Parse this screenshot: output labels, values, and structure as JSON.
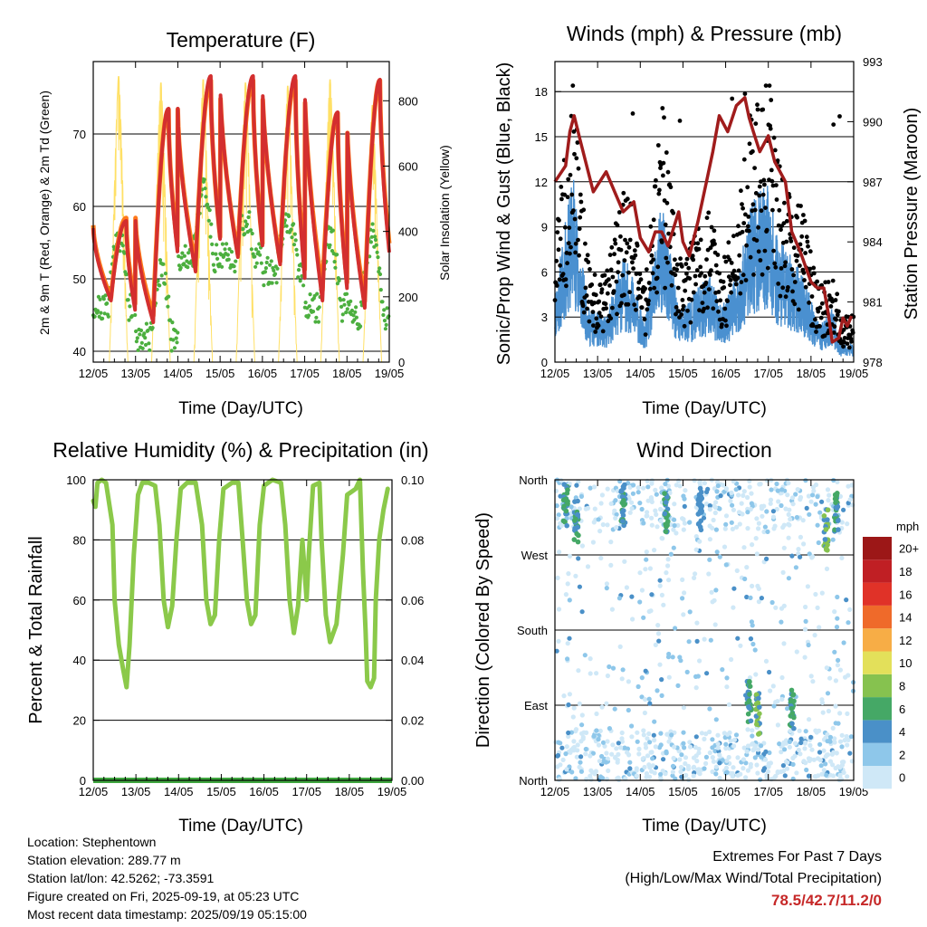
{
  "chart_data": [
    {
      "id": "temperature",
      "type": "line",
      "title": "Temperature (F)",
      "ylabel": "2m & 9m T (Red, Orange) & 2m Td (Green)",
      "y2label": "Solar Insolation (Yellow)",
      "xlabel": "Time (Day/UTC)",
      "xticks": [
        "12/05",
        "13/05",
        "14/05",
        "15/05",
        "16/05",
        "17/05",
        "18/05",
        "19/05"
      ],
      "xlim_days": [
        0,
        7
      ],
      "ylim": [
        38.5,
        80
      ],
      "yticks": [
        40,
        50,
        60,
        70
      ],
      "y2lim": [
        0,
        920
      ],
      "y2ticks": [
        0,
        200,
        400,
        600,
        800
      ],
      "grid_y": [
        40,
        50,
        60,
        70
      ],
      "series": [
        {
          "name": "2m T",
          "color": "#d32f2f",
          "daily_min": [
            47,
            44,
            51,
            53,
            52,
            47,
            46,
            51
          ],
          "daily_max": [
            58,
            73.5,
            78,
            78,
            78,
            73,
            77.5
          ]
        },
        {
          "name": "9m T",
          "color": "#ff7a1a",
          "daily_min": [
            47,
            44.5,
            51.5,
            53,
            52,
            48,
            46.5,
            52
          ],
          "daily_max": [
            58,
            73,
            77,
            77,
            77,
            72.5,
            77
          ]
        },
        {
          "name": "2m Td",
          "color": "#4caf3f",
          "daily_min": [
            46,
            42,
            53,
            53,
            51,
            46,
            45,
            50
          ],
          "daily_max": [
            56,
            51,
            62,
            58,
            58,
            56,
            56,
            51
          ]
        },
        {
          "name": "Solar Insolation",
          "color": "#ffe066",
          "daily_max": [
            890,
            870,
            880,
            870,
            860,
            880,
            800
          ]
        }
      ]
    },
    {
      "id": "winds",
      "type": "scatter",
      "title": "Winds (mph) & Pressure (mb)",
      "ylabel": "Sonic/Prop Wind & Gust (Blue, Black)",
      "y2label": "Station Pressure (Maroon)",
      "xlabel": "Time (Day/UTC)",
      "xticks": [
        "12/05",
        "13/05",
        "14/05",
        "15/05",
        "16/05",
        "17/05",
        "18/05",
        "19/05"
      ],
      "xlim_days": [
        0,
        7
      ],
      "ylim": [
        0,
        20
      ],
      "yticks": [
        0,
        3,
        6,
        9,
        12,
        15,
        18
      ],
      "y2lim": [
        978,
        993
      ],
      "y2ticks": [
        978,
        981,
        984,
        987,
        990,
        993
      ],
      "series": [
        {
          "name": "Wind",
          "color": "#4a90d0"
        },
        {
          "name": "Gust",
          "color": "#000000",
          "max": 18.4
        },
        {
          "name": "Pressure",
          "color": "#a01c1c",
          "points": [
            [
              0,
              987
            ],
            [
              0.25,
              987.8
            ],
            [
              0.35,
              989.5
            ],
            [
              0.45,
              990.3
            ],
            [
              0.6,
              989
            ],
            [
              0.9,
              986.5
            ],
            [
              1.2,
              987.5
            ],
            [
              1.4,
              986.5
            ],
            [
              1.6,
              985.5
            ],
            [
              1.85,
              986
            ],
            [
              2.0,
              984.2
            ],
            [
              2.2,
              983.5
            ],
            [
              2.35,
              984.5
            ],
            [
              2.5,
              984.5
            ],
            [
              2.65,
              983.8
            ],
            [
              2.9,
              985.5
            ],
            [
              3.0,
              984
            ],
            [
              3.15,
              983.3
            ],
            [
              3.35,
              985
            ],
            [
              3.55,
              987
            ],
            [
              3.7,
              988.5
            ],
            [
              3.85,
              990.3
            ],
            [
              4.05,
              989.5
            ],
            [
              4.25,
              990.8
            ],
            [
              4.45,
              991.2
            ],
            [
              4.55,
              990.2
            ],
            [
              4.65,
              989.5
            ],
            [
              4.8,
              988.5
            ],
            [
              5.0,
              989.3
            ],
            [
              5.15,
              988
            ],
            [
              5.4,
              987
            ],
            [
              5.55,
              984.5
            ],
            [
              5.75,
              983.5
            ],
            [
              6.0,
              982
            ],
            [
              6.15,
              981.7
            ],
            [
              6.3,
              981.7
            ],
            [
              6.4,
              980.5
            ],
            [
              6.5,
              979
            ],
            [
              6.65,
              979.2
            ],
            [
              6.75,
              980.2
            ],
            [
              6.85,
              979.8
            ],
            [
              6.95,
              980.3
            ]
          ]
        }
      ]
    },
    {
      "id": "humidity",
      "type": "line",
      "title": "Relative Humidity (%) & Precipitation (in)",
      "ylabel": "Percent & Total Rainfall",
      "xlabel": "Time (Day/UTC)",
      "xticks": [
        "12/05",
        "13/05",
        "14/05",
        "15/05",
        "16/05",
        "17/05",
        "18/05",
        "19/05"
      ],
      "xlim_days": [
        0,
        7
      ],
      "ylim": [
        0,
        100
      ],
      "yticks": [
        0,
        20,
        40,
        60,
        80,
        100
      ],
      "y2lim": [
        0,
        0.1
      ],
      "y2ticks": [
        "0.00",
        "0.02",
        "0.04",
        "0.06",
        "0.08",
        "0.10"
      ],
      "series": [
        {
          "name": "Relative Humidity",
          "color": "#8bc94a",
          "points": [
            [
              0,
              93
            ],
            [
              0.05,
              91
            ],
            [
              0.1,
              99
            ],
            [
              0.2,
              100
            ],
            [
              0.3,
              99
            ],
            [
              0.45,
              85
            ],
            [
              0.5,
              60
            ],
            [
              0.6,
              45
            ],
            [
              0.7,
              37
            ],
            [
              0.78,
              31
            ],
            [
              0.85,
              45
            ],
            [
              0.95,
              75
            ],
            [
              1.05,
              95
            ],
            [
              1.15,
              99
            ],
            [
              1.3,
              99
            ],
            [
              1.45,
              98
            ],
            [
              1.55,
              85
            ],
            [
              1.65,
              60
            ],
            [
              1.75,
              51
            ],
            [
              1.85,
              58
            ],
            [
              1.95,
              80
            ],
            [
              2.05,
              97
            ],
            [
              2.2,
              99
            ],
            [
              2.4,
              99
            ],
            [
              2.55,
              85
            ],
            [
              2.65,
              60
            ],
            [
              2.75,
              52
            ],
            [
              2.85,
              55
            ],
            [
              2.95,
              80
            ],
            [
              3.05,
              97
            ],
            [
              3.25,
              99
            ],
            [
              3.4,
              99
            ],
            [
              3.5,
              80
            ],
            [
              3.6,
              60
            ],
            [
              3.7,
              52
            ],
            [
              3.8,
              55
            ],
            [
              3.9,
              85
            ],
            [
              4.0,
              98
            ],
            [
              4.2,
              100
            ],
            [
              4.4,
              99
            ],
            [
              4.5,
              85
            ],
            [
              4.6,
              60
            ],
            [
              4.7,
              49
            ],
            [
              4.8,
              58
            ],
            [
              4.9,
              80
            ],
            [
              4.95,
              70
            ],
            [
              5.0,
              60
            ],
            [
              5.05,
              75
            ],
            [
              5.15,
              98
            ],
            [
              5.3,
              99
            ],
            [
              5.35,
              80
            ],
            [
              5.45,
              55
            ],
            [
              5.55,
              46
            ],
            [
              5.7,
              52
            ],
            [
              5.85,
              75
            ],
            [
              5.95,
              95
            ],
            [
              6.05,
              96
            ],
            [
              6.15,
              97
            ],
            [
              6.25,
              100
            ],
            [
              6.32,
              70
            ],
            [
              6.38,
              50
            ],
            [
              6.42,
              33
            ],
            [
              6.5,
              31
            ],
            [
              6.58,
              34
            ],
            [
              6.62,
              60
            ],
            [
              6.7,
              80
            ],
            [
              6.8,
              90
            ],
            [
              6.9,
              97
            ]
          ]
        },
        {
          "name": "Precipitation",
          "color": "#3fa63f",
          "total": 0
        }
      ]
    },
    {
      "id": "direction",
      "type": "scatter",
      "title": "Wind Direction",
      "ylabel": "Direction (Colored By Speed)",
      "xlabel": "Time (Day/UTC)",
      "xticks": [
        "12/05",
        "13/05",
        "14/05",
        "15/05",
        "16/05",
        "17/05",
        "18/05",
        "19/05"
      ],
      "xlim_days": [
        0,
        7
      ],
      "yticks": [
        "North",
        "East",
        "South",
        "West",
        "North"
      ],
      "colorbar": {
        "unit": "mph",
        "levels": [
          "0",
          "2",
          "4",
          "6",
          "8",
          "10",
          "12",
          "14",
          "16",
          "18",
          "20+"
        ],
        "colors": [
          "#cfe8f7",
          "#8ec7ea",
          "#4a90c8",
          "#45a866",
          "#86c24f",
          "#e3e05a",
          "#f7ad46",
          "#ef6a2a",
          "#e03228",
          "#c01f24",
          "#9c1717"
        ]
      },
      "clusters": [
        {
          "t": 0.25,
          "deg": 330,
          "color": "#45a866"
        },
        {
          "t": 0.5,
          "deg": 310,
          "color": "#45a866"
        },
        {
          "t": 1.6,
          "deg": 330,
          "color": "#45a866"
        },
        {
          "t": 2.6,
          "deg": 320,
          "color": "#45a866"
        },
        {
          "t": 3.4,
          "deg": 325,
          "color": "#4a90c8"
        },
        {
          "t": 4.55,
          "deg": 95,
          "color": "#45a866"
        },
        {
          "t": 4.75,
          "deg": 80,
          "color": "#86c24f"
        },
        {
          "t": 5.55,
          "deg": 85,
          "color": "#45a866"
        },
        {
          "t": 6.35,
          "deg": 300,
          "color": "#86c24f"
        },
        {
          "t": 6.6,
          "deg": 320,
          "color": "#45a866"
        }
      ]
    }
  ],
  "info": {
    "location": "Location: Stephentown",
    "elevation": "Station elevation: 289.77 m",
    "latlon": "Station lat/lon: 42.5262; -73.3591",
    "created": "Figure created on Fri, 2025-09-19, at 05:23 UTC",
    "recent": "Most recent data timestamp: 2025/09/19 05:15:00"
  },
  "extremes": {
    "title": "Extremes For Past 7 Days",
    "subtitle": "(High/Low/Max Wind/Total Precipitation)",
    "values": "78.5/42.7/11.2/0"
  }
}
